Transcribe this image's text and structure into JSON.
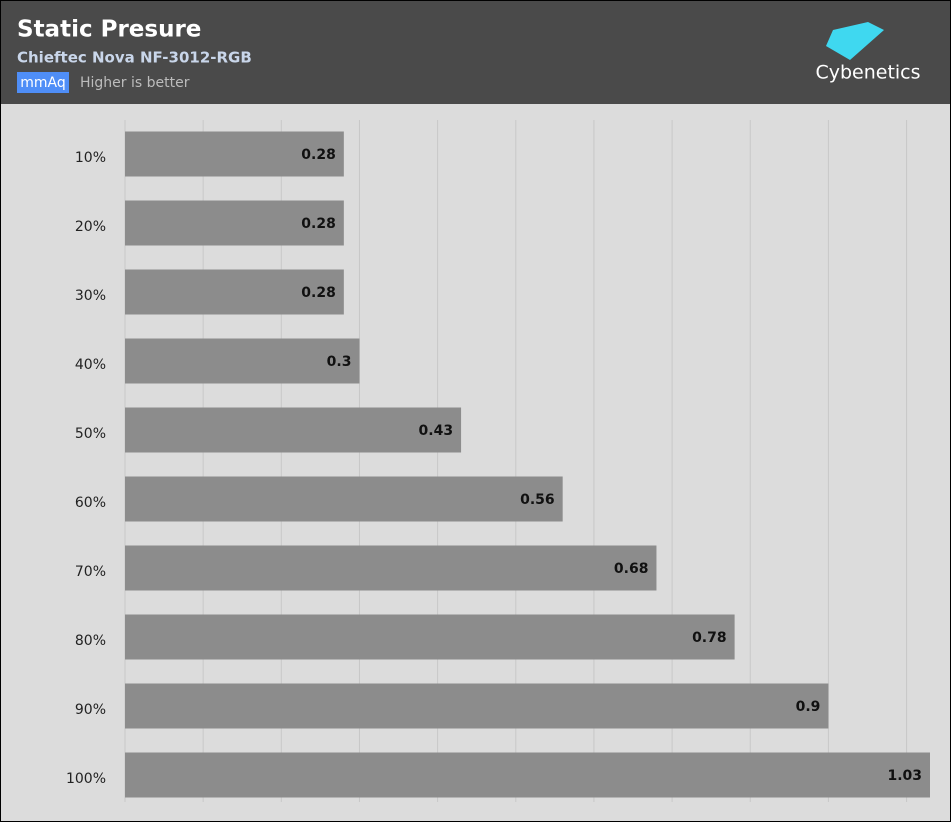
{
  "chart_data": {
    "type": "barh",
    "title": "Static Presure",
    "subtitle": "Chieftec Nova NF-3012-RGB",
    "unit": "mmAq",
    "note": "Higher is better",
    "brand": "Cybenetics",
    "categories": [
      "10%",
      "20%",
      "30%",
      "40%",
      "50%",
      "60%",
      "70%",
      "80%",
      "90%",
      "100%"
    ],
    "values": [
      0.28,
      0.28,
      0.28,
      0.3,
      0.43,
      0.56,
      0.68,
      0.78,
      0.9,
      1.03
    ],
    "color": "#8c8c8c",
    "xlim": [
      0,
      1.03
    ],
    "xticks": [
      0,
      0.1,
      0.2,
      0.3,
      0.4,
      0.5,
      0.6,
      0.7,
      0.8,
      0.9,
      1.0
    ],
    "grid": true
  }
}
